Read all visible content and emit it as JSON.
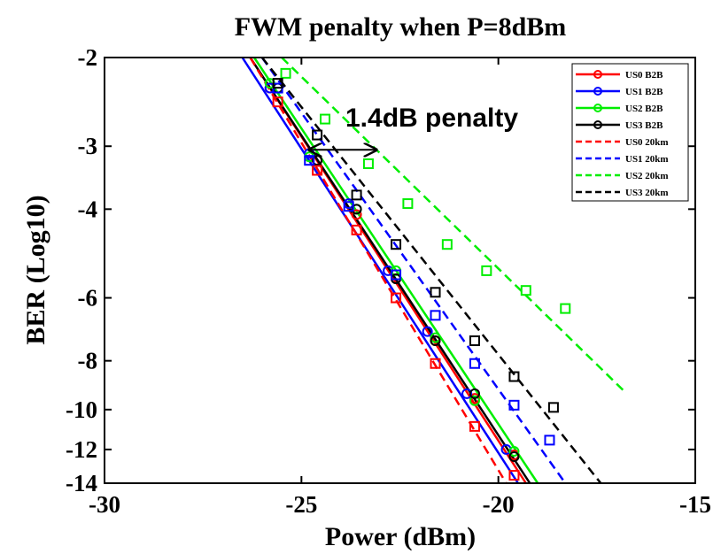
{
  "chart_data": {
    "type": "line",
    "title": "FWM penalty when P=8dBm",
    "xlabel": "Power (dBm)",
    "ylabel": "BER (Log10)",
    "xlim": [
      -30,
      -15
    ],
    "ylim": [
      -14,
      -2
    ],
    "yscale": "log-log",
    "xticks": [
      -30,
      -25,
      -20,
      -15
    ],
    "xtick_labels": [
      "-30",
      "-25",
      "-20",
      "-15"
    ],
    "yticks": [
      -2,
      -3,
      -4,
      -6,
      -8,
      -10,
      -12,
      -14
    ],
    "ytick_labels": [
      "-2",
      "-3",
      "-4",
      "-6",
      "-8",
      "-10",
      "-12",
      "-14"
    ],
    "grid": false,
    "legend_position": "top-right",
    "series": [
      {
        "name": "US0 B2B",
        "color": "#ff0000",
        "style": "solid",
        "marker": "circle",
        "x": [
          -25.8,
          -24.6,
          -23.6,
          -22.6,
          -21.6,
          -20.6,
          -19.6
        ],
        "y": [
          -2.3,
          -3.2,
          -4.1,
          -5.5,
          -7.3,
          -9.5,
          -12.3
        ],
        "fit": [
          [
            -26.3,
            -2.0
          ],
          [
            -19.3,
            -14.0
          ]
        ]
      },
      {
        "name": "US1 B2B",
        "color": "#0000ff",
        "style": "solid",
        "marker": "circle",
        "x": [
          -25.8,
          -24.8,
          -23.8,
          -22.8,
          -21.8,
          -20.8,
          -19.8
        ],
        "y": [
          -2.3,
          -3.1,
          -3.9,
          -5.3,
          -7.0,
          -9.3,
          -12.0
        ],
        "fit": [
          [
            -26.5,
            -2.0
          ],
          [
            -19.5,
            -14.0
          ]
        ]
      },
      {
        "name": "US2 B2B",
        "color": "#00ee00",
        "style": "solid",
        "marker": "circle",
        "x": [
          -25.8,
          -24.8,
          -23.6,
          -22.6,
          -21.6,
          -20.6,
          -19.6
        ],
        "y": [
          -2.25,
          -3.15,
          -4.0,
          -5.3,
          -7.2,
          -9.6,
          -12.1
        ],
        "fit": [
          [
            -26.2,
            -2.0
          ],
          [
            -19.0,
            -14.0
          ]
        ]
      },
      {
        "name": "US3 B2B",
        "color": "#000000",
        "style": "solid",
        "marker": "circle",
        "x": [
          -25.6,
          -24.6,
          -23.6,
          -22.6,
          -21.6,
          -20.6,
          -19.6
        ],
        "y": [
          -2.3,
          -3.2,
          -4.0,
          -5.5,
          -7.3,
          -9.3,
          -12.4
        ],
        "fit": [
          [
            -26.3,
            -2.0
          ],
          [
            -19.2,
            -14.0
          ]
        ]
      },
      {
        "name": "US0 20km",
        "color": "#ff0000",
        "style": "dashed",
        "marker": "square",
        "x": [
          -25.6,
          -24.6,
          -23.6,
          -22.6,
          -21.6,
          -20.6,
          -19.6
        ],
        "y": [
          -2.45,
          -3.35,
          -4.4,
          -6.0,
          -8.1,
          -10.8,
          -13.5
        ],
        "fit": [
          [
            -26.3,
            -2.0
          ],
          [
            -19.8,
            -14.0
          ]
        ]
      },
      {
        "name": "US1 20km",
        "color": "#0000ff",
        "style": "dashed",
        "marker": "square",
        "x": [
          -25.6,
          -24.8,
          -23.8,
          -22.6,
          -21.6,
          -20.6,
          -19.6,
          -18.7
        ],
        "y": [
          -2.3,
          -3.2,
          -3.95,
          -5.4,
          -6.5,
          -8.1,
          -9.8,
          -11.5
        ],
        "fit": [
          [
            -26.0,
            -2.0
          ],
          [
            -18.3,
            -14.0
          ]
        ]
      },
      {
        "name": "US2 20km",
        "color": "#00ee00",
        "style": "dashed",
        "marker": "square",
        "x": [
          -25.4,
          -24.4,
          -23.3,
          -22.3,
          -21.3,
          -20.3,
          -19.3,
          -18.3
        ],
        "y": [
          -2.15,
          -2.65,
          -3.25,
          -3.9,
          -4.7,
          -5.3,
          -5.8,
          -6.3
        ],
        "fit": [
          [
            -25.5,
            -2.0
          ],
          [
            -16.8,
            -9.2
          ]
        ]
      },
      {
        "name": "US3 20km",
        "color": "#000000",
        "style": "dashed",
        "marker": "square",
        "x": [
          -25.6,
          -24.6,
          -23.6,
          -22.6,
          -21.6,
          -20.6,
          -19.6,
          -18.6
        ],
        "y": [
          -2.25,
          -2.85,
          -3.75,
          -4.7,
          -5.85,
          -7.3,
          -8.6,
          -9.9
        ],
        "fit": [
          [
            -26.0,
            -2.0
          ],
          [
            -17.4,
            -14.0
          ]
        ]
      }
    ],
    "annotations": [
      {
        "text": "1.4dB penalty",
        "arrow_from_x": -24.8,
        "arrow_to_x": -23.1,
        "arrow_y": -3.05
      }
    ]
  }
}
